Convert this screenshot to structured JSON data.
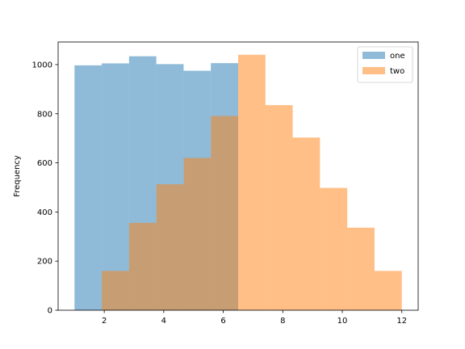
{
  "chart_data": {
    "type": "histogram",
    "ylabel": "Frequency",
    "xlim": [
      0.45,
      12.55
    ],
    "ylim": [
      0,
      1092
    ],
    "xticks": [
      2,
      4,
      6,
      8,
      10,
      12
    ],
    "yticks": [
      0,
      200,
      400,
      600,
      800,
      1000
    ],
    "legend_position": "top-right",
    "grid": false,
    "series": [
      {
        "name": "one",
        "color": "#1f77b4",
        "alpha": 0.5,
        "bins": [
          {
            "x0": 1.0,
            "x1": 1.917,
            "value": 997
          },
          {
            "x0": 1.917,
            "x1": 2.833,
            "value": 1005
          },
          {
            "x0": 2.833,
            "x1": 3.75,
            "value": 1034
          },
          {
            "x0": 3.75,
            "x1": 4.667,
            "value": 1002
          },
          {
            "x0": 4.667,
            "x1": 5.583,
            "value": 975
          },
          {
            "x0": 5.583,
            "x1": 6.5,
            "value": 1006
          }
        ]
      },
      {
        "name": "two",
        "color": "#ff7f0e",
        "alpha": 0.5,
        "bins": [
          {
            "x0": 1.917,
            "x1": 2.833,
            "value": 160
          },
          {
            "x0": 2.833,
            "x1": 3.75,
            "value": 356
          },
          {
            "x0": 3.75,
            "x1": 4.667,
            "value": 513
          },
          {
            "x0": 4.667,
            "x1": 5.583,
            "value": 620
          },
          {
            "x0": 5.583,
            "x1": 6.5,
            "value": 791
          },
          {
            "x0": 6.5,
            "x1": 7.417,
            "value": 1040
          },
          {
            "x0": 7.417,
            "x1": 8.333,
            "value": 835
          },
          {
            "x0": 8.333,
            "x1": 9.25,
            "value": 703
          },
          {
            "x0": 9.25,
            "x1": 10.167,
            "value": 498
          },
          {
            "x0": 10.167,
            "x1": 11.083,
            "value": 336
          },
          {
            "x0": 11.083,
            "x1": 12.0,
            "value": 160
          }
        ]
      }
    ]
  }
}
